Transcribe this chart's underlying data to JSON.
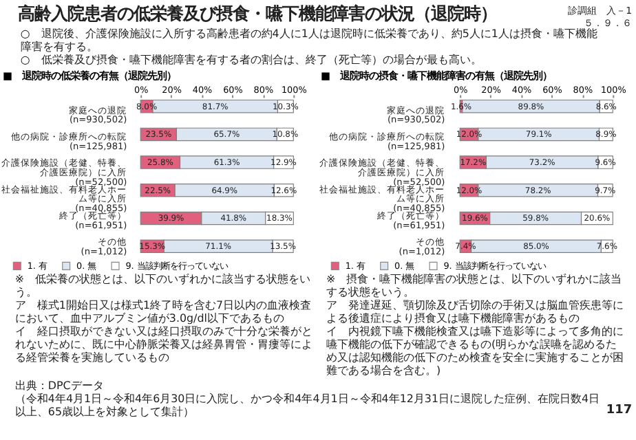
{
  "chart_data": [
    {
      "type": "bar",
      "orientation": "horizontal",
      "stacked": true,
      "title": "■　退院時の低栄養の有無（退院先別）",
      "categories": [
        "家庭への退院(n=930,502)",
        "他の病院・診療所への転院(n=125,981)",
        "介護保険施設（老健、特養、介護医療院）に入所(n=52,500)",
        "社会福祉施設、有料老人ホーム等に入所(n=40,855)",
        "終了（死亡等）(n=61,951)",
        "その他(n=1,012)"
      ],
      "series": [
        {
          "name": "1. 有",
          "color": "#e0607e",
          "values": [
            8.0,
            23.5,
            25.8,
            22.5,
            39.9,
            15.3
          ],
          "value_labels": [
            "8.0%",
            "23.5%",
            "25.8%",
            "22.5%",
            "39.9%",
            "15.3%"
          ]
        },
        {
          "name": "0. 無",
          "color": "#dce6f2",
          "values": [
            81.7,
            65.7,
            61.3,
            64.9,
            41.8,
            71.1
          ],
          "value_labels": [
            "81.7%",
            "65.7%",
            "61.3%",
            "64.9%",
            "41.8%",
            "71.1%"
          ]
        },
        {
          "name": "9. 当該判断を行っていない",
          "color": "#ffffff",
          "values": [
            10.3,
            10.8,
            12.9,
            12.6,
            18.3,
            13.5
          ],
          "value_labels": [
            "10.3%",
            "10.8%",
            "12.9%",
            "12.6%",
            "18.3%",
            "13.5%"
          ]
        }
      ],
      "xlim": [
        0,
        100
      ],
      "xticks": [
        {
          "value": 0,
          "label": "0%"
        },
        {
          "value": 20,
          "label": "20%"
        },
        {
          "value": 40,
          "label": "40%"
        },
        {
          "value": 60,
          "label": "60%"
        },
        {
          "value": 80,
          "label": "80%"
        },
        {
          "value": 100,
          "label": "100%"
        }
      ],
      "legend": "bottom",
      "grid": false,
      "annotations": [
        "高齢入院患者の低栄養及び摂食・嚥下機能障害の状況（退院時）",
        "診調組　入－1",
        "５．９．６",
        "○　退院後、介護保険施設に入所する高齢患者の約4人に1人は退院時に低栄養であり、約5人に1人は摂食・嚥下機能障害を有する。",
        "○　低栄養及び摂食・嚥下機能障害を有する者の割合は、終了（死亡等）の場合が最も高い。",
        "※　低栄養の状態とは、以下のいずれかに該当する状態をいう。",
        "ア　様式1開始日又は様式1終了時を含む7日以内の血液検査において、血中アルブミン値が3.0g/dl以下であるもの",
        "イ　経口摂取ができない又は経口摂取のみで十分な栄養がとれないために、既に中心静脈栄養又は経鼻胃管・胃瘻等による経管栄養を実施しているもの",
        "出典：DPCデータ",
        "（令和4年4月1日～令和4年6月30日に入院し、かつ令和4年4月1日～令和4年12月31日に退院した症例、在院日数4日以上、65歳以上を対象として集計）",
        "117"
      ]
    },
    {
      "type": "bar",
      "orientation": "horizontal",
      "stacked": true,
      "title": "■　退院時の摂食・嚥下機能障害の有無（退院先別）",
      "categories": [
        "家庭への退院(n=930,502)",
        "他の病院・診療所への転院(n=125,981)",
        "介護保険施設（老健、特養、介護医療院）に入所(n=52,500)",
        "社会福祉施設、有料老人ホーム等に入所(n=40,855)",
        "終了（死亡等）(n=61,951)",
        "その他(n=1,012)"
      ],
      "series": [
        {
          "name": "1. 有",
          "color": "#e0607e",
          "values": [
            1.6,
            12.0,
            17.2,
            12.0,
            19.6,
            7.4
          ],
          "value_labels": [
            "1.6%",
            "12.0%",
            "17.2%",
            "12.0%",
            "19.6%",
            "7.4%"
          ]
        },
        {
          "name": "0. 無",
          "color": "#dce6f2",
          "values": [
            89.8,
            79.1,
            73.2,
            78.2,
            59.8,
            85.0
          ],
          "value_labels": [
            "89.8%",
            "79.1%",
            "73.2%",
            "78.2%",
            "59.8%",
            "85.0%"
          ]
        },
        {
          "name": "9. 当該判断を行っていない",
          "color": "#ffffff",
          "values": [
            8.6,
            8.9,
            9.6,
            9.7,
            20.6,
            7.6
          ],
          "value_labels": [
            "8.6%",
            "8.9%",
            "9.6%",
            "9.7%",
            "20.6%",
            "7.6%"
          ]
        }
      ],
      "xlim": [
        0,
        100
      ],
      "xticks": [
        {
          "value": 0,
          "label": "0%"
        },
        {
          "value": 20,
          "label": "20%"
        },
        {
          "value": 40,
          "label": "40%"
        },
        {
          "value": 60,
          "label": "60%"
        },
        {
          "value": 80,
          "label": "80%"
        },
        {
          "value": 100,
          "label": "100%"
        }
      ],
      "legend": "bottom",
      "grid": false,
      "annotations": [
        "※　摂食・嚥下機能障害の状態とは、以下のいずれかに該当する状態をいう。",
        "ア　発達遅延、顎切除及び舌切除の手術又は脳血管疾患等による後遺症により摂食又は嚥下機能障害があるもの",
        "イ　内視鏡下嚥下機能検査又は嚥下造影等によって多角的に嚥下機能の低下が確認できるもの(明らかな誤嚥を認めるため又は認知機能の低下のため検査を安全に実施することが困難である場合を含む。)"
      ]
    }
  ]
}
